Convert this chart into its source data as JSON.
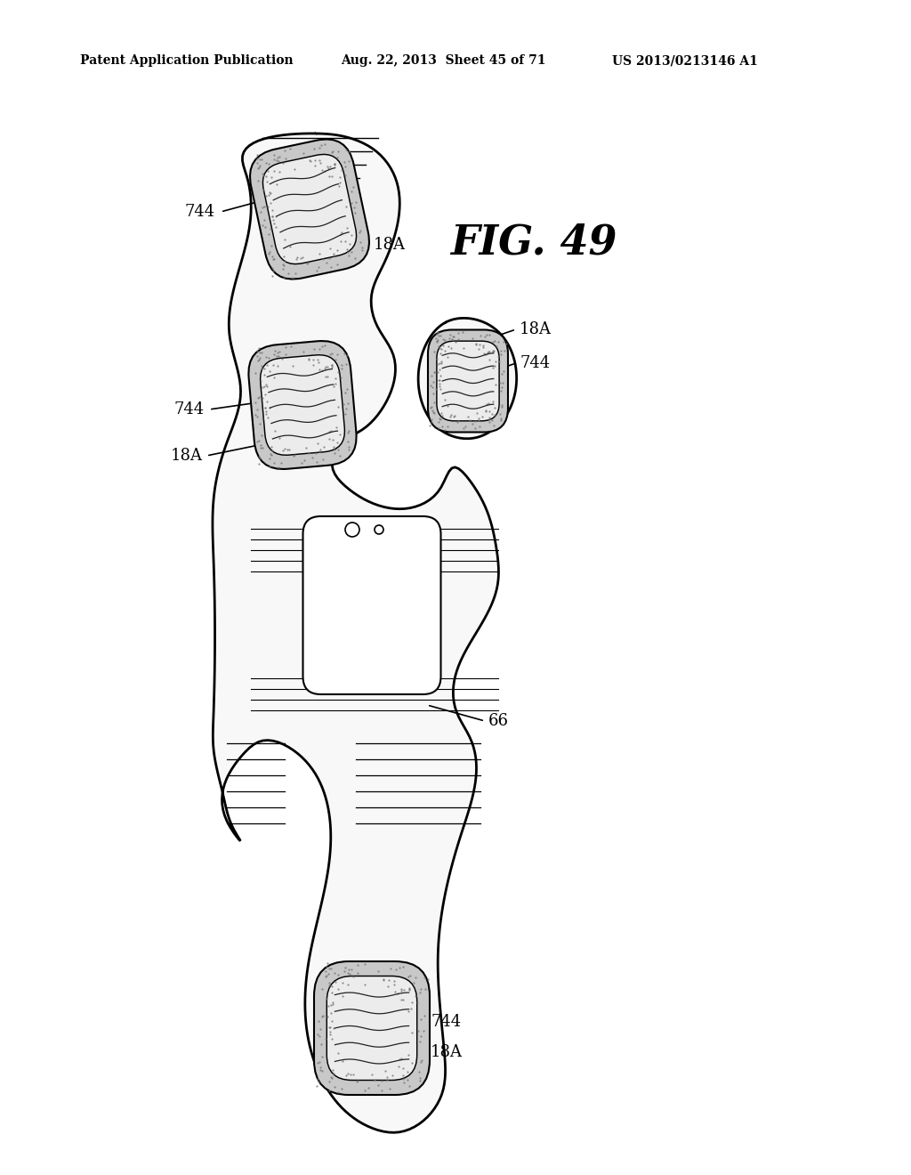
{
  "bg_color": "#ffffff",
  "line_color": "#000000",
  "title": "FIG. 49",
  "header_left": "Patent Application Publication",
  "header_mid": "Aug. 22, 2013  Sheet 45 of 71",
  "header_right": "US 2013/0213146 A1",
  "labels": {
    "744_top": "744",
    "18A_top": "18A",
    "744_mid_left": "744",
    "18A_mid_left": "18A",
    "18A_mid_right": "18A",
    "744_mid_right": "744",
    "66": "66",
    "744_bot": "744",
    "18A_bot": "18A"
  }
}
